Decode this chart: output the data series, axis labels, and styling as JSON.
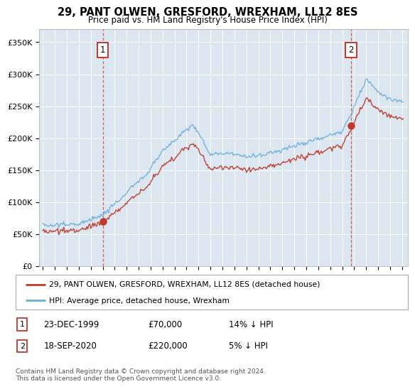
{
  "title": "29, PANT OLWEN, GRESFORD, WREXHAM, LL12 8ES",
  "subtitle": "Price paid vs. HM Land Registry's House Price Index (HPI)",
  "ylabel_ticks": [
    "£0",
    "£50K",
    "£100K",
    "£150K",
    "£200K",
    "£250K",
    "£300K",
    "£350K"
  ],
  "ytick_values": [
    0,
    50000,
    100000,
    150000,
    200000,
    250000,
    300000,
    350000
  ],
  "ylim": [
    0,
    370000
  ],
  "sale1": {
    "date_num": 2000.0,
    "price": 70000,
    "label": "1",
    "date_str": "23-DEC-1999",
    "pct": "14%",
    "dir": "↓"
  },
  "sale2": {
    "date_num": 2020.75,
    "price": 220000,
    "label": "2",
    "date_str": "18-SEP-2020",
    "pct": "5%",
    "dir": "↓"
  },
  "legend1": "29, PANT OLWEN, GRESFORD, WREXHAM, LL12 8ES (detached house)",
  "legend2": "HPI: Average price, detached house, Wrexham",
  "footer": "Contains HM Land Registry data © Crown copyright and database right 2024.\nThis data is licensed under the Open Government Licence v3.0.",
  "price_color": "#c0392b",
  "hpi_color": "#6aaed6",
  "bg_color": "#dce6f1",
  "xlim_start": 1994.7,
  "xlim_end": 2025.5
}
